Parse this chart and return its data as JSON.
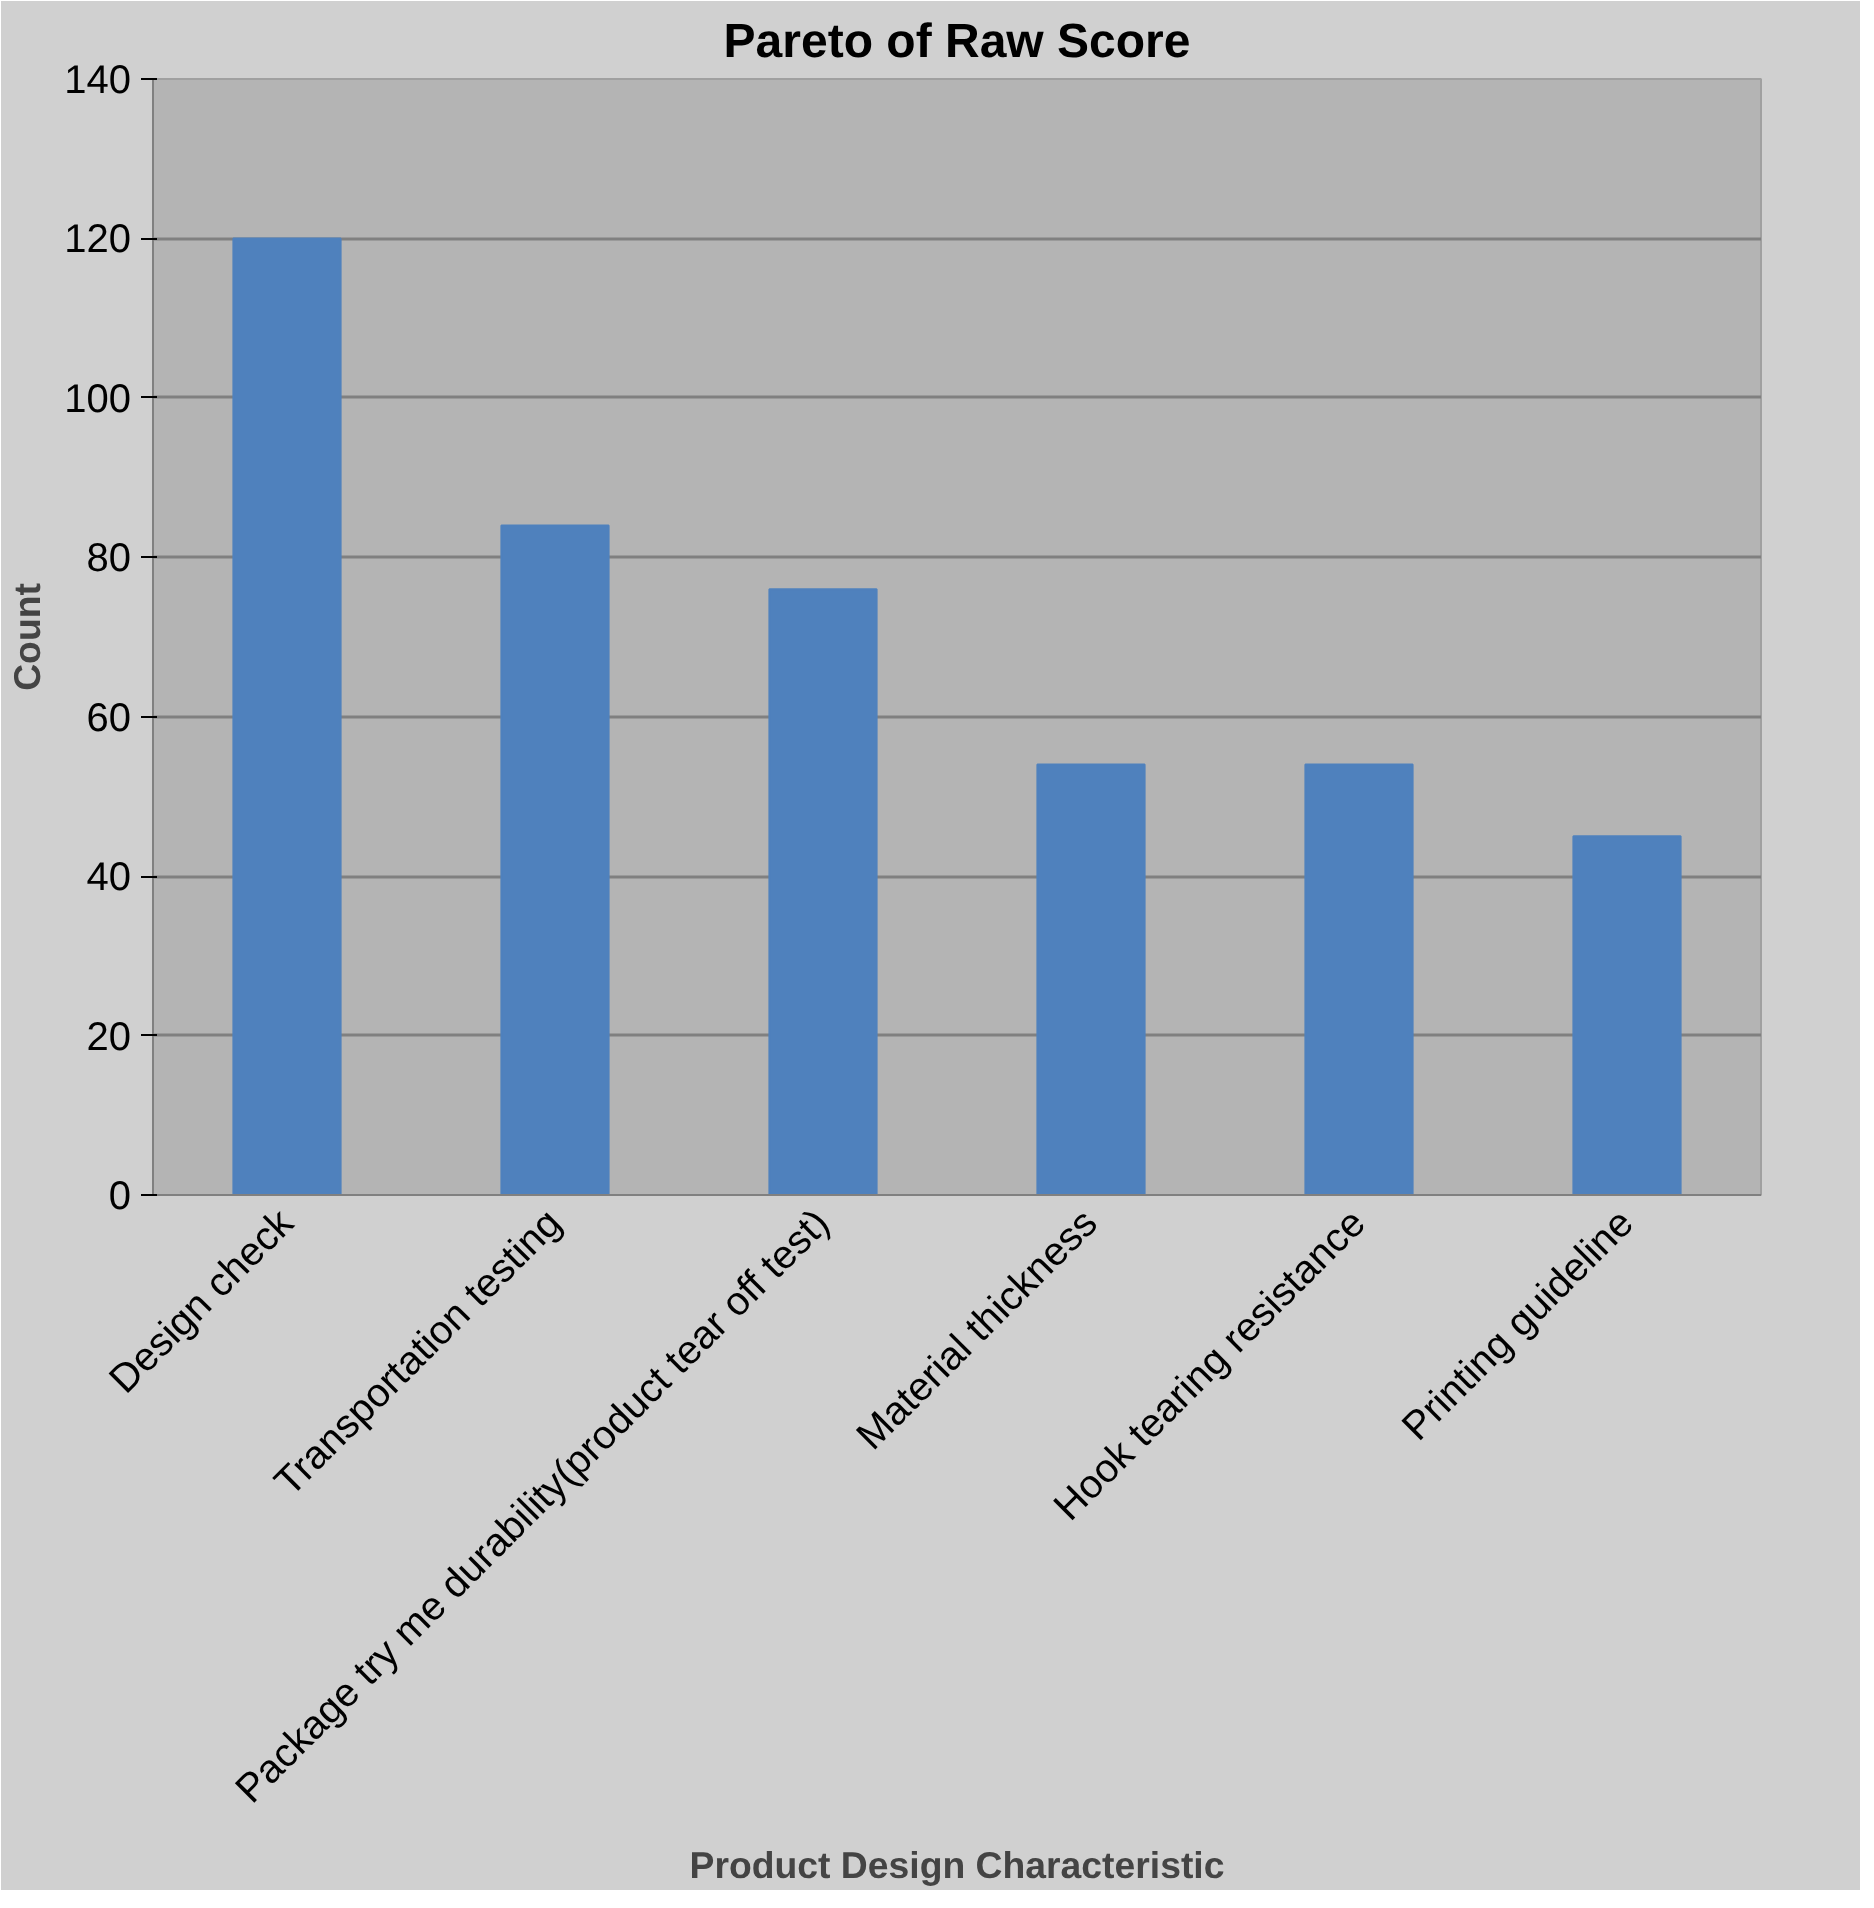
{
  "chart_data": {
    "type": "bar",
    "title": "Pareto of Raw Score",
    "xlabel": "Product Design Characteristic",
    "ylabel": "Count",
    "categories": [
      "Design check",
      "Transportation testing",
      "Package try me durability(product tear off test)",
      "Material thickness",
      "Hook tearing resistance",
      "Printing guideline"
    ],
    "values": [
      120,
      84,
      76,
      54,
      54,
      45
    ],
    "color": "#4f81bd",
    "ylim": [
      0,
      140
    ],
    "yticks": [
      0,
      20,
      40,
      60,
      80,
      100,
      120,
      140
    ],
    "grid": "y"
  }
}
